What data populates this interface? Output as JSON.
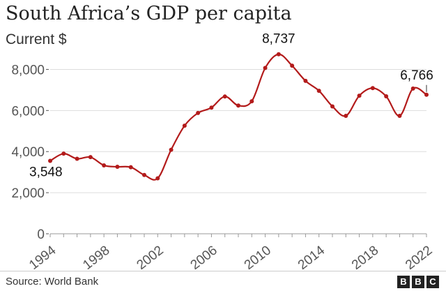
{
  "chart_data": {
    "type": "line",
    "title": "South Africa’s GDP per capita",
    "subtitle": "Current $",
    "xlabel": "",
    "ylabel": "",
    "x": [
      1994,
      1995,
      1996,
      1997,
      1998,
      1999,
      2000,
      2001,
      2002,
      2003,
      2004,
      2005,
      2006,
      2007,
      2008,
      2009,
      2010,
      2011,
      2012,
      2013,
      2014,
      2015,
      2016,
      2017,
      2018,
      2019,
      2020,
      2021,
      2022
    ],
    "series": [
      {
        "name": "",
        "values": [
          3548,
          3900,
          3650,
          3730,
          3330,
          3260,
          3240,
          2860,
          2700,
          4090,
          5260,
          5880,
          6140,
          6680,
          6240,
          6450,
          8070,
          8737,
          8180,
          7440,
          6960,
          6200,
          5740,
          6720,
          7090,
          6690,
          5740,
          7070,
          6766
        ]
      }
    ],
    "xticks": [
      "1994",
      "1998",
      "2002",
      "2006",
      "2010",
      "2014",
      "2018",
      "2022"
    ],
    "yticks": [
      "0",
      "2,000",
      "4,000",
      "6,000",
      "8,000"
    ],
    "ylim": [
      0,
      9000
    ],
    "annotations": [
      {
        "label": "3,548",
        "x": 1994,
        "y": 3548
      },
      {
        "label": "8,737",
        "x": 2011,
        "y": 8737
      },
      {
        "label": "6,766",
        "x": 2022,
        "y": 6766
      }
    ],
    "colors": {
      "line": "#b31b1b",
      "grid": "#dddddd",
      "axis_text": "#555555"
    },
    "grid": true
  },
  "footer": {
    "source": "Source: World Bank",
    "logo_letters": [
      "B",
      "B",
      "C"
    ]
  }
}
